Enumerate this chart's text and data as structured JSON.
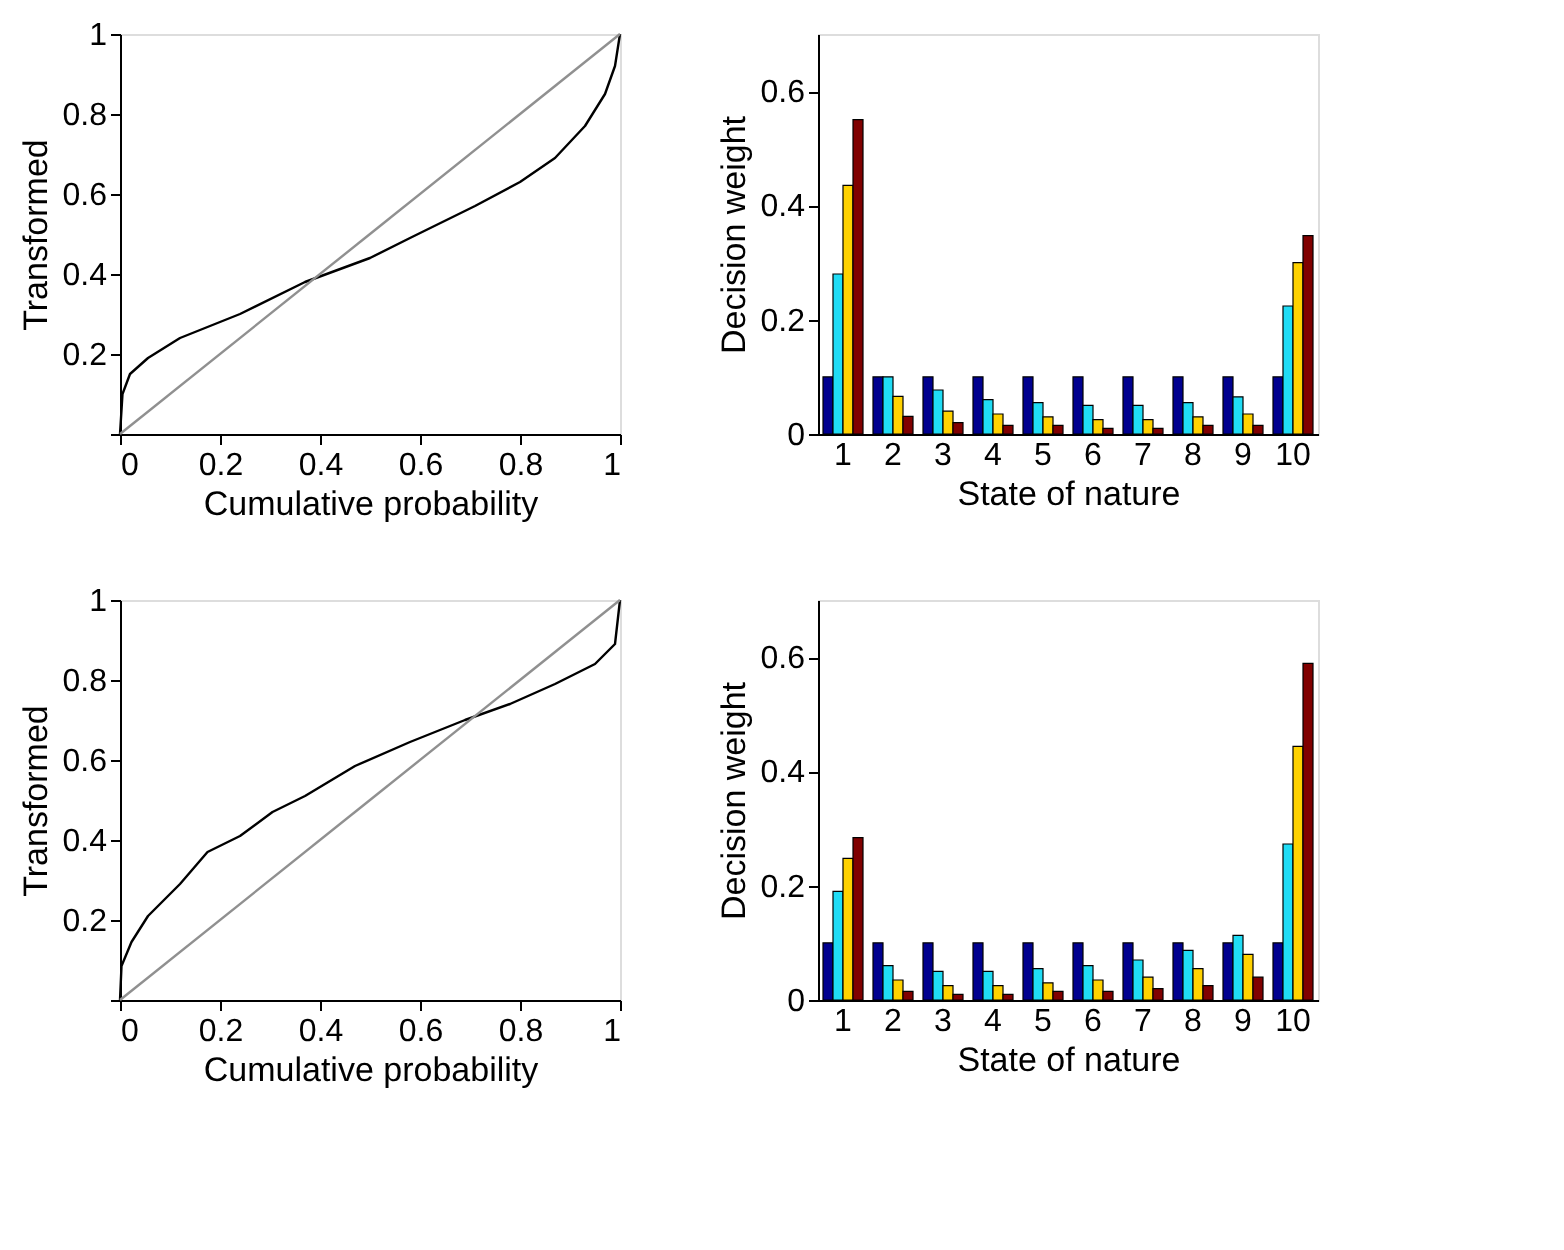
{
  "chart_data": [
    {
      "type": "line",
      "xlabel": "Cumulative probability",
      "ylabel": "Transformed",
      "xlim": [
        0,
        1
      ],
      "ylim": [
        0,
        1
      ],
      "xticks": [
        0,
        0.2,
        0.4,
        0.6,
        0.8,
        1
      ],
      "yticks": [
        {
          "value": 0,
          "label": null
        },
        0.2,
        0.4,
        0.6,
        0.8,
        1
      ],
      "grid": false,
      "legend": false,
      "marker": "none",
      "line_style": "solid",
      "series": [
        {
          "color": "#000000",
          "x": [
            0,
            0.005,
            0.02,
            0.056,
            0.12,
            0.24,
            0.37,
            0.5,
            0.58,
            0.71,
            0.8,
            0.87,
            0.93,
            0.97,
            0.99,
            1
          ],
          "values": [
            0,
            0.1,
            0.15,
            0.19,
            0.24,
            0.3,
            0.38,
            0.44,
            0.49,
            0.57,
            0.63,
            0.69,
            0.77,
            0.85,
            0.92,
            1
          ]
        },
        {
          "color": "#909090",
          "x": [
            0,
            0.5,
            1
          ],
          "values": [
            0,
            0.5,
            1
          ]
        }
      ]
    },
    {
      "type": "bar",
      "xlabel": "State of nature",
      "ylabel": "Decision weight",
      "categories": [
        "1",
        "2",
        "3",
        "4",
        "5",
        "6",
        "7",
        "8",
        "9",
        "10"
      ],
      "ylim": [
        0,
        0.7
      ],
      "yticks": [
        0,
        0.2,
        0.4,
        0.6
      ],
      "grid": false,
      "legend": false,
      "series": [
        {
          "color": "#00008f",
          "values": [
            0.1,
            0.1,
            0.1,
            0.1,
            0.1,
            0.1,
            0.1,
            0.1,
            0.1,
            0.1
          ]
        },
        {
          "color": "#20dcf5",
          "values": [
            0.28,
            0.1,
            0.077,
            0.06,
            0.055,
            0.05,
            0.05,
            0.055,
            0.065,
            0.224
          ]
        },
        {
          "color": "#ffd200",
          "values": [
            0.435,
            0.066,
            0.04,
            0.035,
            0.03,
            0.025,
            0.025,
            0.03,
            0.035,
            0.3
          ]
        },
        {
          "color": "#800000",
          "values": [
            0.55,
            0.031,
            0.02,
            0.015,
            0.015,
            0.01,
            0.01,
            0.015,
            0.015,
            0.347
          ]
        }
      ]
    },
    {
      "type": "line",
      "xlabel": "Cumulative probability",
      "ylabel": "Transformed",
      "xlim": [
        0,
        1
      ],
      "ylim": [
        0,
        1
      ],
      "xticks": [
        0,
        0.2,
        0.4,
        0.6,
        0.8,
        1
      ],
      "yticks": [
        {
          "value": 0,
          "label": null
        },
        0.2,
        0.4,
        0.6,
        0.8,
        1
      ],
      "grid": false,
      "legend": false,
      "marker": "none",
      "line_style": "solid",
      "series": [
        {
          "color": "#000000",
          "x": [
            0,
            0.003,
            0.023,
            0.056,
            0.12,
            0.175,
            0.24,
            0.305,
            0.37,
            0.47,
            0.58,
            0.69,
            0.78,
            0.87,
            0.95,
            0.99,
            1
          ],
          "values": [
            0,
            0.085,
            0.145,
            0.21,
            0.29,
            0.37,
            0.41,
            0.47,
            0.51,
            0.585,
            0.645,
            0.7,
            0.74,
            0.79,
            0.84,
            0.89,
            1
          ]
        },
        {
          "color": "#909090",
          "x": [
            0,
            0.5,
            1
          ],
          "values": [
            0,
            0.5,
            1
          ]
        }
      ]
    },
    {
      "type": "bar",
      "xlabel": "State of nature",
      "ylabel": "Decision weight",
      "categories": [
        "1",
        "2",
        "3",
        "4",
        "5",
        "6",
        "7",
        "8",
        "9",
        "10"
      ],
      "ylim": [
        0,
        0.7
      ],
      "yticks": [
        0,
        0.2,
        0.4,
        0.6
      ],
      "grid": false,
      "legend": false,
      "series": [
        {
          "color": "#00008f",
          "values": [
            0.1,
            0.1,
            0.1,
            0.1,
            0.1,
            0.1,
            0.1,
            0.1,
            0.1,
            0.1
          ]
        },
        {
          "color": "#20dcf5",
          "values": [
            0.19,
            0.06,
            0.05,
            0.05,
            0.055,
            0.06,
            0.07,
            0.087,
            0.113,
            0.273
          ]
        },
        {
          "color": "#ffd200",
          "values": [
            0.248,
            0.035,
            0.025,
            0.025,
            0.03,
            0.035,
            0.04,
            0.055,
            0.08,
            0.444
          ]
        },
        {
          "color": "#800000",
          "values": [
            0.284,
            0.015,
            0.01,
            0.01,
            0.015,
            0.015,
            0.02,
            0.025,
            0.04,
            0.589
          ]
        }
      ]
    }
  ]
}
